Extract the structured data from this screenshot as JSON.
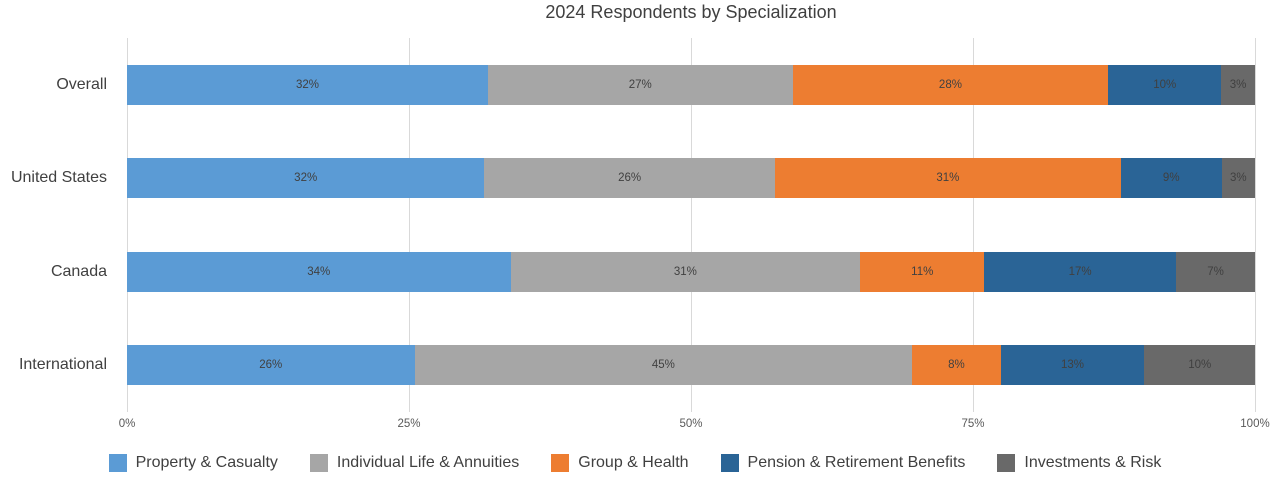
{
  "title": "2024 Respondents by Specialization",
  "chart_data": {
    "type": "bar",
    "stacked": true,
    "orientation": "horizontal",
    "title": "2024 Respondents by Specialization",
    "categories": [
      "Overall",
      "United States",
      "Canada",
      "International"
    ],
    "series": [
      {
        "name": "Property & Casualty",
        "color": "#5B9BD5",
        "values": [
          32,
          32,
          34,
          26
        ],
        "labels": [
          "32%",
          "32%",
          "34%",
          "26%"
        ]
      },
      {
        "name": "Individual Life & Annuities",
        "color": "#A6A6A6",
        "values": [
          27,
          26,
          31,
          45
        ],
        "labels": [
          "27%",
          "26%",
          "31%",
          "45%"
        ]
      },
      {
        "name": "Group & Health",
        "color": "#ED7D31",
        "values": [
          28,
          31,
          11,
          8
        ],
        "labels": [
          "28%",
          "31%",
          "11%",
          "8%"
        ]
      },
      {
        "name": "Pension & Retirement Benefits",
        "color": "#2A6496",
        "values": [
          10,
          9,
          17,
          13
        ],
        "labels": [
          "10%",
          "9%",
          "17%",
          "13%"
        ]
      },
      {
        "name": "Investments & Risk",
        "color": "#696969",
        "values": [
          3,
          3,
          7,
          10
        ],
        "labels": [
          "3%",
          "3%",
          "7%",
          "10%"
        ]
      }
    ],
    "x_axis": {
      "ticks": [
        "0%",
        "25%",
        "50%",
        "75%",
        "100%"
      ],
      "range": [
        0,
        100
      ]
    },
    "value_label_format": "percent",
    "legend_position": "bottom",
    "gridlines": "vertical",
    "gridline_color": "#D9D9D9"
  }
}
